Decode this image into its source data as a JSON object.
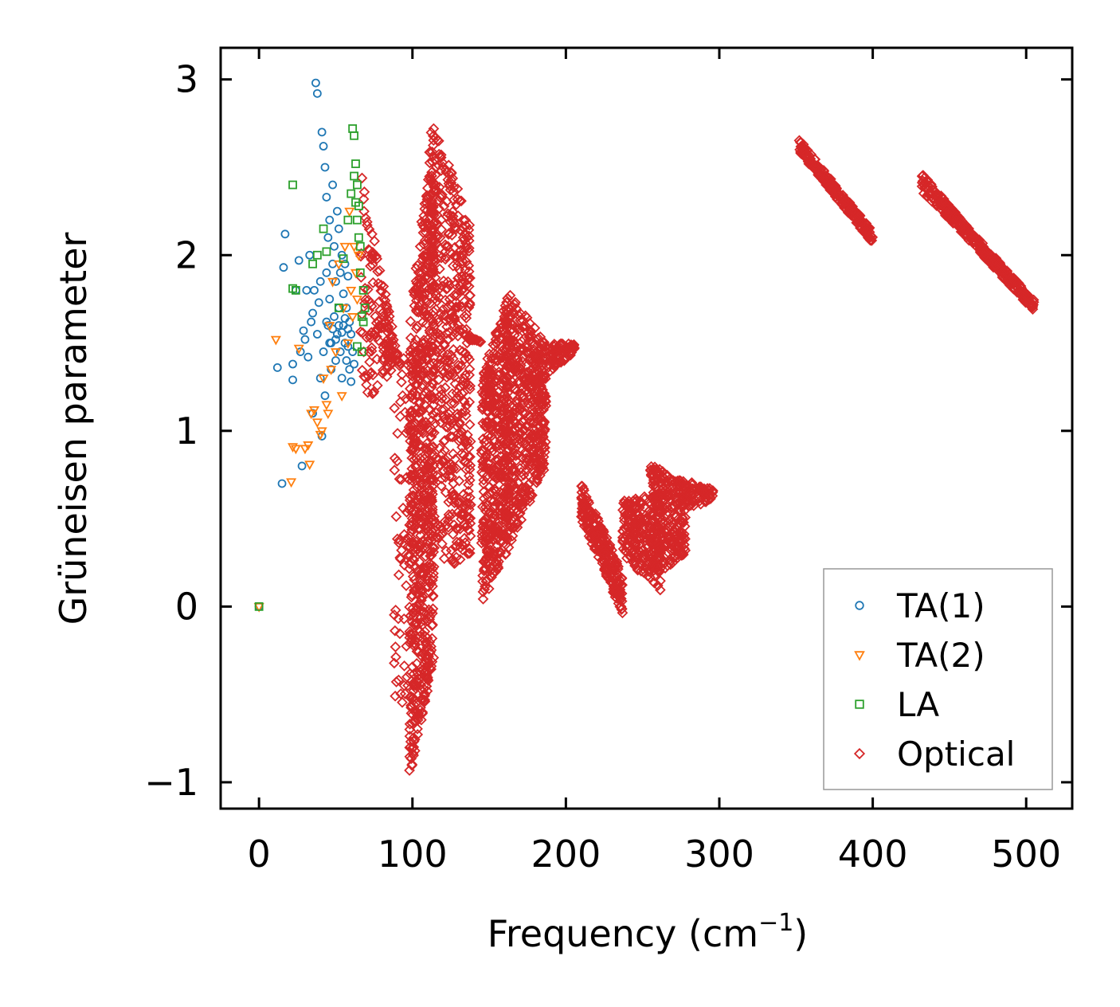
{
  "chart_data": {
    "type": "scatter",
    "title": "",
    "xlabel": "Frequency (cm",
    "xlabel_sup": "−1",
    "xlabel_end": ")",
    "ylabel": "Grüneisen parameter",
    "xlim": [
      -25,
      530
    ],
    "ylim": [
      -1.15,
      3.18
    ],
    "xticks": [
      0,
      100,
      200,
      300,
      400,
      500
    ],
    "xtick_labels": [
      "0",
      "100",
      "200",
      "300",
      "400",
      "500"
    ],
    "yticks": [
      -1,
      0,
      1,
      2,
      3
    ],
    "ytick_labels": [
      "−1",
      "0",
      "1",
      "2",
      "3"
    ],
    "grid": false,
    "legend_position": "bottom-right",
    "series": [
      {
        "name": "TA(1)",
        "marker": "circle",
        "color": "#1f77b4",
        "points": [
          [
            0,
            0
          ],
          [
            12,
            1.36
          ],
          [
            15,
            0.7
          ],
          [
            16,
            1.93
          ],
          [
            17,
            2.12
          ],
          [
            22,
            1.29
          ],
          [
            22,
            1.38
          ],
          [
            24,
            1.8
          ],
          [
            26,
            1.97
          ],
          [
            27,
            1.45
          ],
          [
            28,
            0.8
          ],
          [
            29,
            1.57
          ],
          [
            30,
            1.52
          ],
          [
            31,
            1.8
          ],
          [
            32,
            1.42
          ],
          [
            33,
            2.0
          ],
          [
            34,
            1.62
          ],
          [
            35,
            1.1
          ],
          [
            35,
            1.67
          ],
          [
            36,
            1.8
          ],
          [
            37,
            2.98
          ],
          [
            38,
            2.92
          ],
          [
            38,
            1.55
          ],
          [
            39,
            1.73
          ],
          [
            40,
            1.3
          ],
          [
            40,
            1.85
          ],
          [
            41,
            0.97
          ],
          [
            41,
            2.7
          ],
          [
            42,
            2.62
          ],
          [
            42,
            1.45
          ],
          [
            43,
            1.2
          ],
          [
            43,
            2.5
          ],
          [
            44,
            1.9
          ],
          [
            44,
            2.33
          ],
          [
            45,
            1.6
          ],
          [
            45,
            2.1
          ],
          [
            46,
            1.75
          ],
          [
            46,
            2.2
          ],
          [
            47,
            1.35
          ],
          [
            47,
            1.5
          ],
          [
            48,
            2.4
          ],
          [
            48,
            1.95
          ],
          [
            49,
            1.65
          ],
          [
            49,
            2.05
          ],
          [
            50,
            1.4
          ],
          [
            50,
            1.85
          ],
          [
            51,
            2.25
          ],
          [
            51,
            1.55
          ],
          [
            52,
            1.7
          ],
          [
            52,
            2.15
          ],
          [
            53,
            1.45
          ],
          [
            53,
            1.9
          ],
          [
            54,
            2.0
          ],
          [
            54,
            1.3
          ],
          [
            55,
            1.6
          ],
          [
            55,
            1.78
          ],
          [
            56,
            1.5
          ],
          [
            56,
            1.95
          ],
          [
            57,
            1.4
          ],
          [
            57,
            1.7
          ],
          [
            58,
            1.88
          ],
          [
            58,
            1.48
          ],
          [
            59,
            1.62
          ],
          [
            59,
            1.35
          ],
          [
            60,
            1.55
          ],
          [
            60,
            1.28
          ],
          [
            61,
            1.45
          ],
          [
            62,
            1.38
          ],
          [
            44,
            1.62
          ],
          [
            46,
            1.5
          ],
          [
            48,
            1.58
          ],
          [
            50,
            1.52
          ],
          [
            52,
            1.6
          ],
          [
            54,
            1.56
          ],
          [
            56,
            1.64
          ],
          [
            58,
            1.58
          ]
        ]
      },
      {
        "name": "TA(2)",
        "marker": "triangle-down",
        "color": "#ff7f0e",
        "points": [
          [
            0,
            0
          ],
          [
            11,
            1.52
          ],
          [
            21,
            0.71
          ],
          [
            22,
            0.91
          ],
          [
            24,
            0.9
          ],
          [
            26,
            1.47
          ],
          [
            30,
            0.9
          ],
          [
            32,
            0.92
          ],
          [
            33,
            0.81
          ],
          [
            34,
            1.1
          ],
          [
            36,
            1.12
          ],
          [
            38,
            1.05
          ],
          [
            40,
            0.98
          ],
          [
            41,
            1.0
          ],
          [
            42,
            1.3
          ],
          [
            44,
            1.15
          ],
          [
            45,
            1.1
          ],
          [
            46,
            1.6
          ],
          [
            47,
            1.35
          ],
          [
            48,
            1.85
          ],
          [
            50,
            1.45
          ],
          [
            52,
            1.95
          ],
          [
            54,
            1.2
          ],
          [
            55,
            1.7
          ],
          [
            56,
            2.05
          ],
          [
            58,
            1.5
          ],
          [
            59,
            2.25
          ],
          [
            60,
            1.8
          ],
          [
            61,
            1.65
          ],
          [
            62,
            2.05
          ],
          [
            63,
            1.9
          ],
          [
            64,
            1.75
          ],
          [
            65,
            2.0
          ]
        ]
      },
      {
        "name": "LA",
        "marker": "square",
        "color": "#2ca02c",
        "points": [
          [
            0,
            0
          ],
          [
            22,
            2.4
          ],
          [
            22,
            1.81
          ],
          [
            24,
            1.8
          ],
          [
            35,
            1.95
          ],
          [
            38,
            2.0
          ],
          [
            42,
            2.15
          ],
          [
            44,
            2.02
          ],
          [
            52,
            1.7
          ],
          [
            55,
            1.98
          ],
          [
            58,
            2.2
          ],
          [
            60,
            2.35
          ],
          [
            61,
            2.72
          ],
          [
            62,
            2.68
          ],
          [
            62,
            2.45
          ],
          [
            63,
            2.52
          ],
          [
            63,
            2.3
          ],
          [
            64,
            2.4
          ],
          [
            64,
            2.2
          ],
          [
            65,
            2.1
          ],
          [
            65,
            2.28
          ],
          [
            66,
            2.05
          ],
          [
            66,
            1.9
          ],
          [
            67,
            1.65
          ],
          [
            67,
            1.45
          ],
          [
            68,
            1.62
          ],
          [
            68,
            1.8
          ],
          [
            69,
            1.7
          ],
          [
            64,
            1.48
          ]
        ]
      },
      {
        "name": "Optical",
        "marker": "diamond",
        "color": "#d62728",
        "points": []
      }
    ],
    "optical_regions": [
      {
        "x": [
          66,
          92
        ],
        "ytop": [
          2.5,
          1.36
        ],
        "ybot": [
          1.12,
          1.4
        ],
        "n": 160
      },
      {
        "x": [
          88,
          98
        ],
        "ytop": [
          1.45,
          1.45
        ],
        "ybot": [
          -0.6,
          -0.62
        ],
        "n": 60
      },
      {
        "x": [
          98,
          114
        ],
        "ytop": [
          1.6,
          2.84
        ],
        "ybot": [
          -0.98,
          -0.3
        ],
        "n": 700
      },
      {
        "x": [
          112,
          138
        ],
        "ytop": [
          2.8,
          2.17
        ],
        "ybot": [
          0.15,
          0.3
        ],
        "n": 520
      },
      {
        "x": [
          136,
          145
        ],
        "ytop": [
          1.55,
          1.5
        ],
        "ybot": [
          1.5,
          1.52
        ],
        "n": 20
      },
      {
        "x": [
          145,
          163
        ],
        "ytop": [
          1.32,
          1.78
        ],
        "ybot": [
          0.0,
          0.35
        ],
        "n": 420
      },
      {
        "x": [
          160,
          187
        ],
        "ytop": [
          1.82,
          1.5
        ],
        "ybot": [
          0.28,
          0.8
        ],
        "n": 520
      },
      {
        "x": [
          185,
          206
        ],
        "ytop": [
          1.5,
          1.5
        ],
        "ybot": [
          1.3,
          1.45
        ],
        "n": 80
      },
      {
        "x": [
          210,
          237
        ],
        "ytop": [
          0.7,
          0.2
        ],
        "ybot": [
          0.5,
          -0.05
        ],
        "n": 240
      },
      {
        "x": [
          237,
          262
        ],
        "ytop": [
          0.6,
          0.65
        ],
        "ybot": [
          0.3,
          0.06
        ],
        "n": 220
      },
      {
        "x": [
          255,
          278
        ],
        "ytop": [
          0.82,
          0.7
        ],
        "ybot": [
          0.15,
          0.3
        ],
        "n": 260
      },
      {
        "x": [
          275,
          296
        ],
        "ytop": [
          0.72,
          0.68
        ],
        "ybot": [
          0.55,
          0.6
        ],
        "n": 80
      },
      {
        "x": [
          352,
          400
        ],
        "ytop": [
          2.67,
          2.1
        ],
        "ybot": [
          2.58,
          2.1
        ],
        "n": 260,
        "thin": true
      },
      {
        "x": [
          432,
          505
        ],
        "ytop": [
          2.47,
          1.71
        ],
        "ybot": [
          2.36,
          1.71
        ],
        "n": 360,
        "thin": true
      }
    ]
  }
}
